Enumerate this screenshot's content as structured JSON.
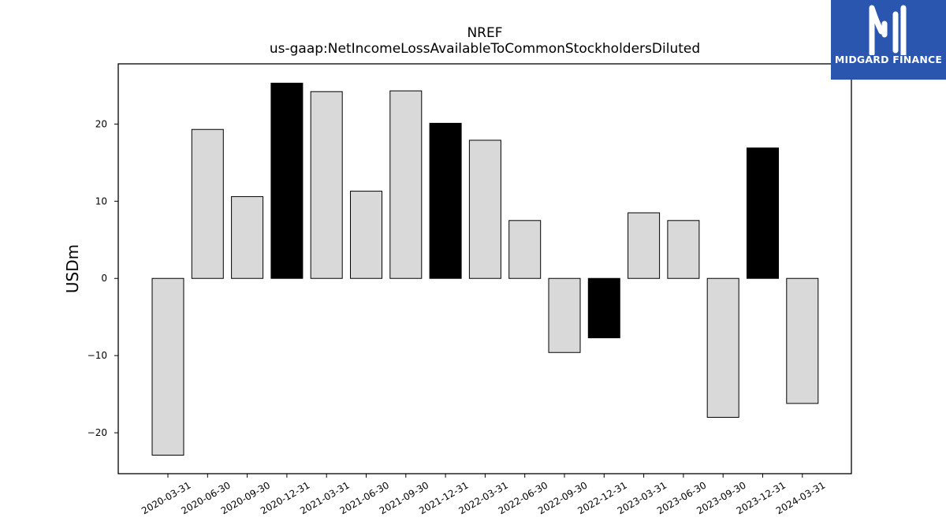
{
  "chart_data": {
    "type": "bar",
    "title": "NREF",
    "subtitle": "us-gaap:NetIncomeLossAvailableToCommonStockholdersDiluted",
    "ylabel": "USDm",
    "xlabel": "",
    "ylim": [
      -25.3,
      27.8
    ],
    "yticks": [
      -20,
      -10,
      0,
      10,
      20
    ],
    "grid": false,
    "categories": [
      "2020-03-31",
      "2020-06-30",
      "2020-09-30",
      "2020-12-31",
      "2021-03-31",
      "2021-06-30",
      "2021-09-30",
      "2021-12-31",
      "2022-03-31",
      "2022-06-30",
      "2022-09-30",
      "2022-12-31",
      "2023-03-31",
      "2023-06-30",
      "2023-09-30",
      "2023-12-31",
      "2024-03-31"
    ],
    "values": [
      -22.9,
      19.3,
      10.6,
      25.3,
      24.2,
      11.3,
      24.3,
      20.1,
      17.9,
      7.5,
      -9.6,
      -7.7,
      8.5,
      7.5,
      -18.0,
      16.9,
      -16.2
    ],
    "highlight": [
      false,
      false,
      false,
      true,
      false,
      false,
      false,
      true,
      false,
      false,
      false,
      true,
      false,
      false,
      false,
      true,
      false
    ],
    "colors": {
      "bar": "#d9d9d9",
      "highlight": "#000000",
      "edge": "#000000"
    }
  },
  "logo": {
    "text": "MIDGARD FINANCE",
    "background": "#2a56b0"
  }
}
